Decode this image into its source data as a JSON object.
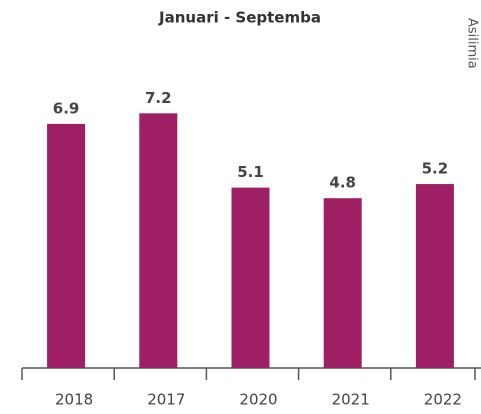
{
  "chart_data": {
    "type": "bar",
    "title": "Januari - Septemba",
    "y_label": "Asilimia",
    "categories": [
      "2018",
      "2017",
      "2020",
      "2021",
      "2022"
    ],
    "values": [
      6.9,
      7.2,
      5.1,
      4.8,
      5.2
    ],
    "color": "#9e1f63",
    "ylim": [
      0,
      8
    ]
  }
}
